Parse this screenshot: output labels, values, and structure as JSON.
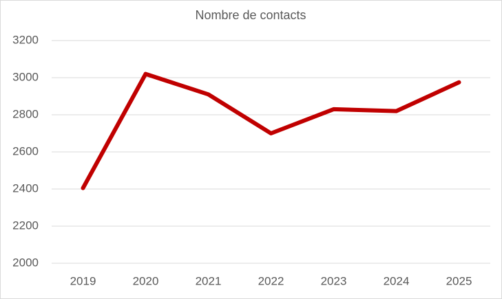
{
  "chart_data": {
    "type": "line",
    "title": "Nombre de contacts",
    "categories": [
      "2019",
      "2020",
      "2021",
      "2022",
      "2023",
      "2024",
      "2025"
    ],
    "values": [
      2405,
      3020,
      2910,
      2700,
      2830,
      2820,
      2975
    ],
    "color": "#c00000",
    "ylim": [
      2000,
      3200
    ],
    "yticks": [
      2000,
      2200,
      2400,
      2600,
      2800,
      3000,
      3200
    ],
    "grid": true
  }
}
